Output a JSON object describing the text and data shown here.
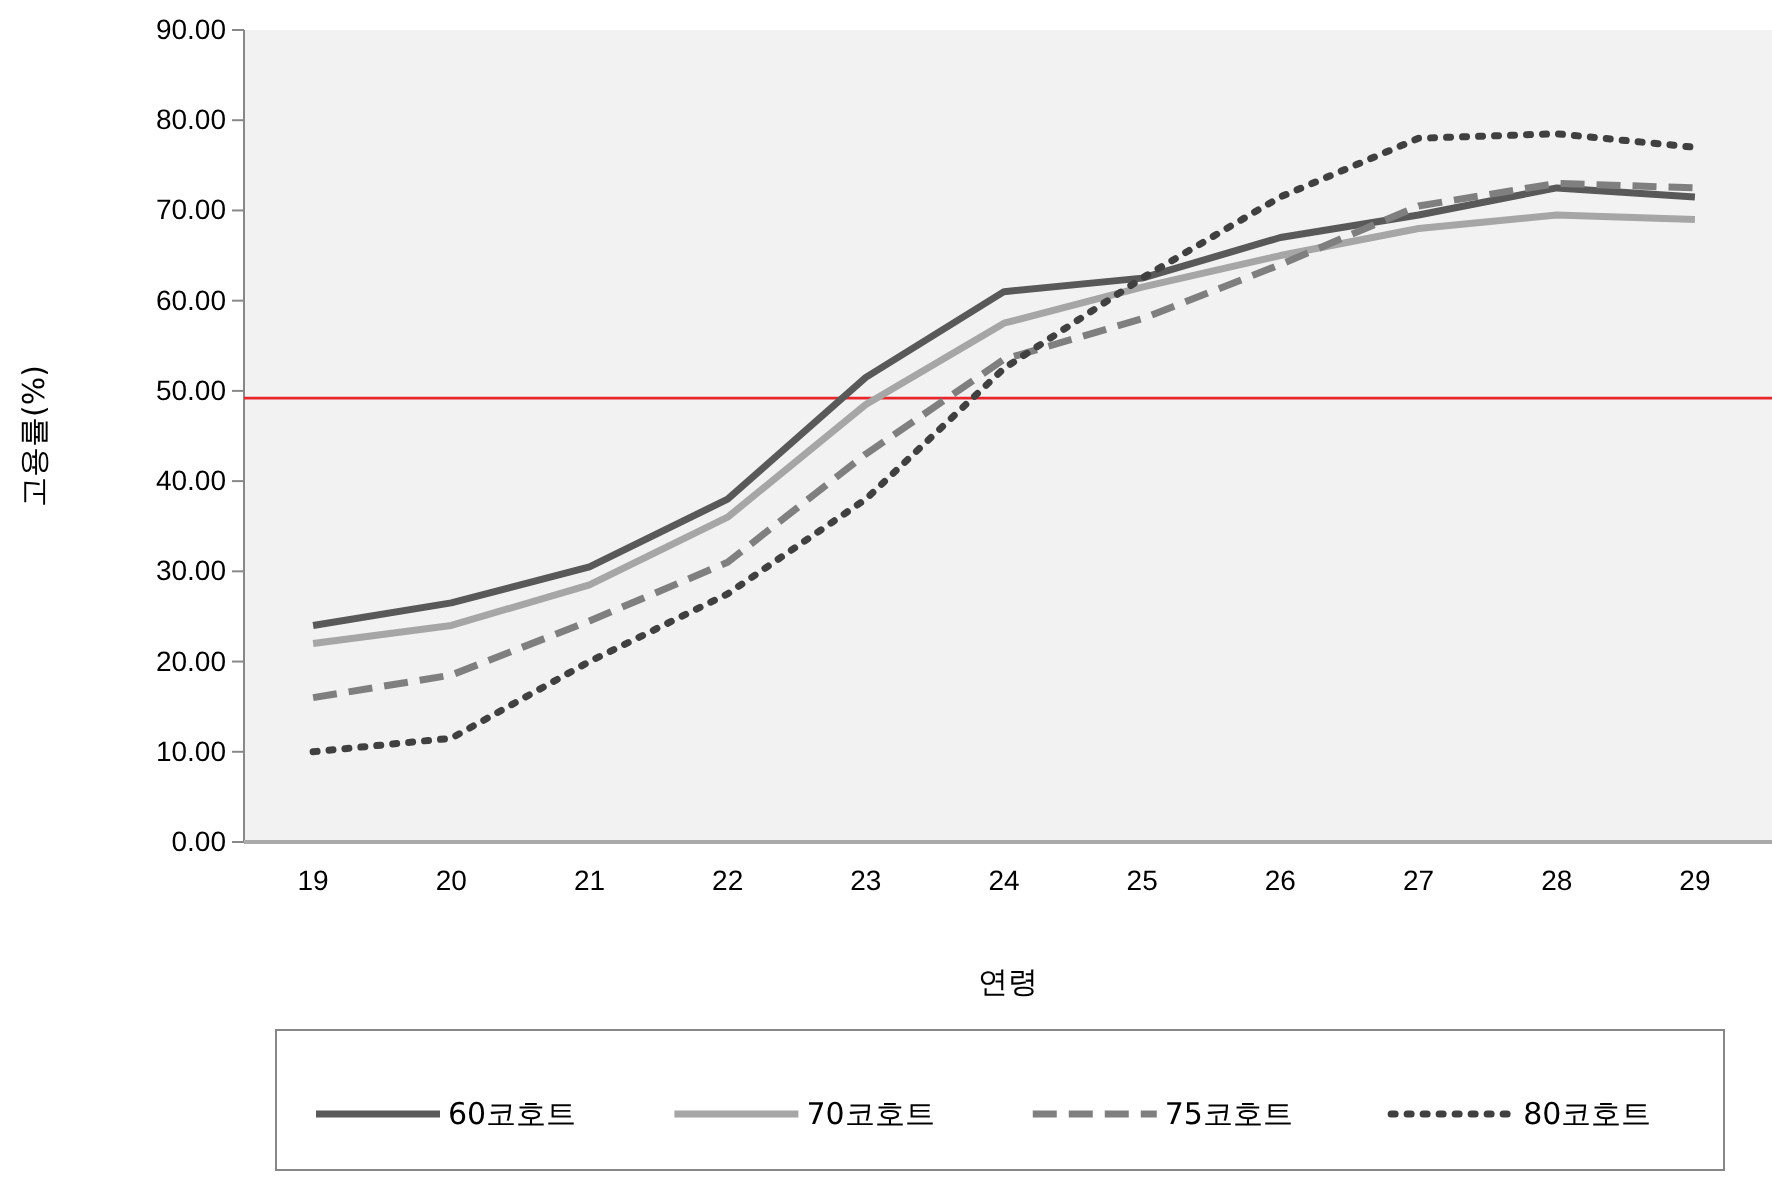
{
  "chart_data": {
    "type": "line",
    "xlabel": "연령",
    "ylabel": "고용률(%)",
    "categories": [
      "19",
      "20",
      "21",
      "22",
      "23",
      "24",
      "25",
      "26",
      "27",
      "28",
      "29"
    ],
    "series": [
      {
        "name": "60코호트",
        "color": "#595959",
        "line_style": "solid",
        "values": [
          24,
          26.5,
          30.5,
          38,
          51.5,
          61,
          62.5,
          67,
          69.5,
          72.5,
          71.5
        ]
      },
      {
        "name": "70코호트",
        "color": "#a6a6a6",
        "line_style": "solid",
        "values": [
          22,
          24,
          28.5,
          36,
          48.5,
          57.5,
          61.5,
          65,
          68,
          69.5,
          69
        ]
      },
      {
        "name": "75코호트",
        "color": "#7f7f7f",
        "line_style": "dashed",
        "values": [
          16,
          18.5,
          24.5,
          31,
          43,
          53.5,
          58,
          64,
          70.5,
          73,
          72.5
        ]
      },
      {
        "name": "80코호트",
        "color": "#404040",
        "line_style": "dotted",
        "values": [
          10,
          11.5,
          20,
          27.5,
          38,
          52.5,
          62.5,
          71.5,
          78,
          78.5,
          77
        ]
      }
    ],
    "ylim": [
      0,
      90
    ],
    "yticks": [
      {
        "value": 0,
        "label": "0.00"
      },
      {
        "value": 10,
        "label": "10.00"
      },
      {
        "value": 20,
        "label": "20.00"
      },
      {
        "value": 30,
        "label": "30.00"
      },
      {
        "value": 40,
        "label": "40.00"
      },
      {
        "value": 50,
        "label": "50.00"
      },
      {
        "value": 60,
        "label": "60.00"
      },
      {
        "value": 70,
        "label": "70.00"
      },
      {
        "value": 80,
        "label": "80.00"
      },
      {
        "value": 90,
        "label": "90.00"
      }
    ],
    "ref_lines": [
      {
        "axis": "y",
        "value": 49.2,
        "color": "#e8262b"
      }
    ],
    "grid": false,
    "legend": "bottom"
  }
}
